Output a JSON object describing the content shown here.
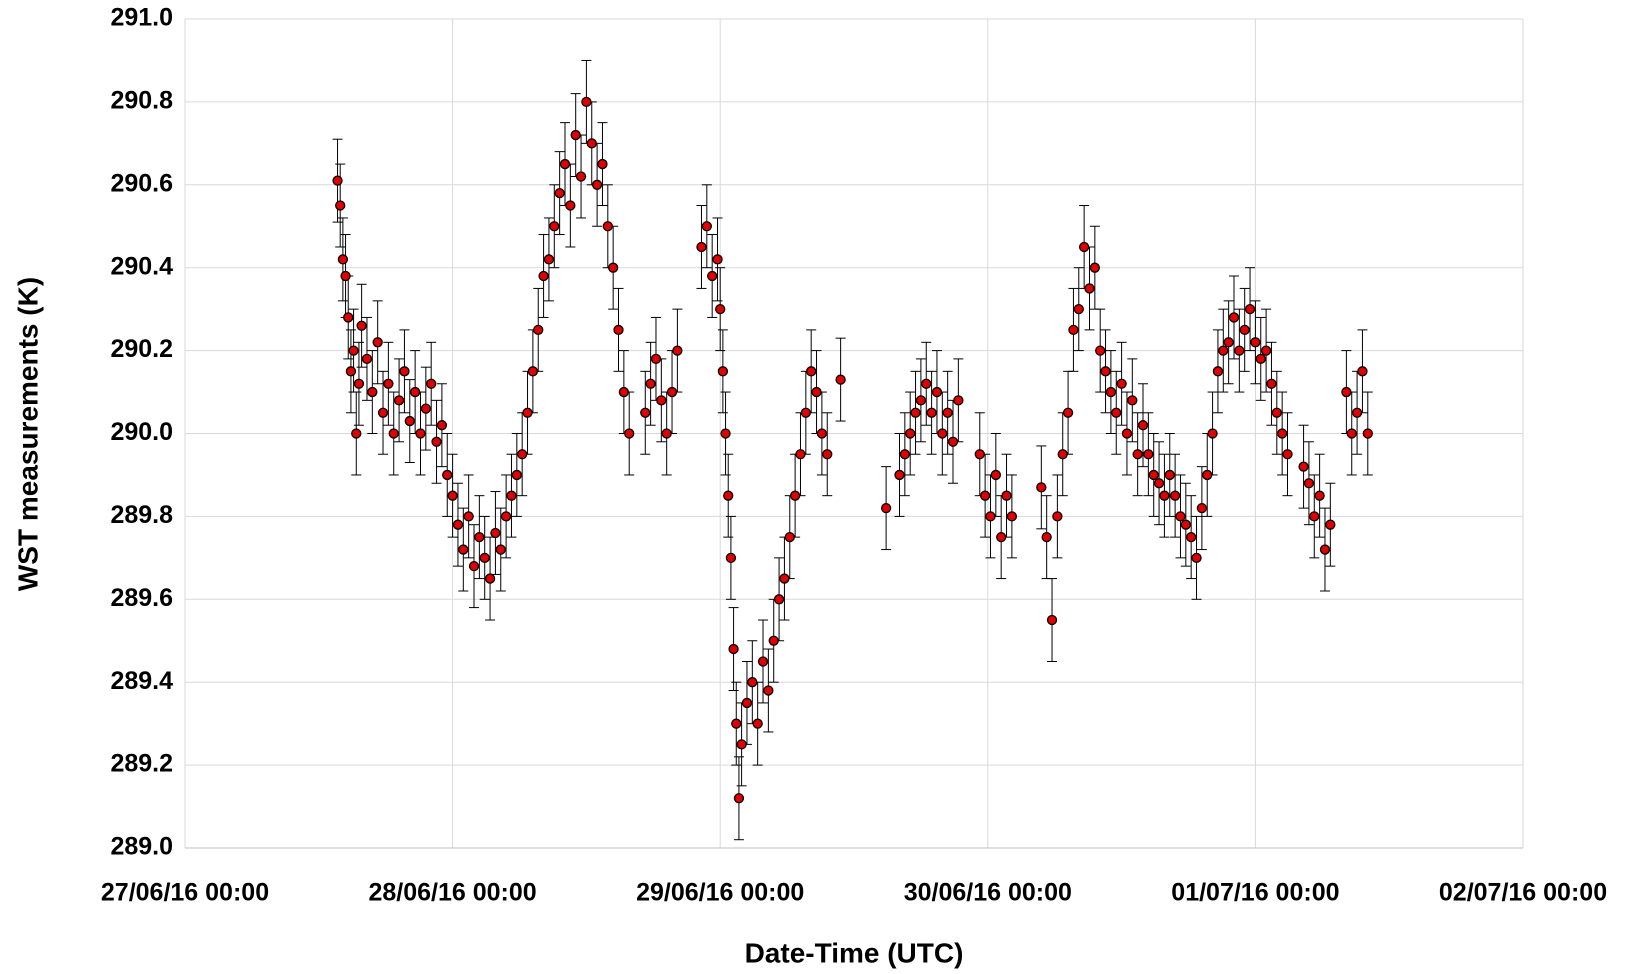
{
  "chart_data": {
    "type": "scatter",
    "x_label": "Date-Time (UTC)",
    "y_label": "WST measurements (K)",
    "color": "#e00000",
    "error": 0.1,
    "grid": true,
    "xlim": [
      0,
      5
    ],
    "xticks": [
      {
        "value": 0,
        "label": "27/06/16 00:00"
      },
      {
        "value": 1,
        "label": "28/06/16 00:00"
      },
      {
        "value": 2,
        "label": "29/06/16 00:00"
      },
      {
        "value": 3,
        "label": "30/06/16 00:00"
      },
      {
        "value": 4,
        "label": "01/07/16 00:00"
      },
      {
        "value": 5,
        "label": "02/07/16 00:00"
      }
    ],
    "ylim": [
      289.0,
      291.0
    ],
    "yticks": [
      {
        "value": 289.0,
        "label": "289.0"
      },
      289.2,
      289.4,
      289.6,
      289.8,
      {
        "value": 290.0,
        "label": "290.0"
      },
      290.2,
      290.4,
      290.6,
      290.8,
      {
        "value": 291.0,
        "label": "291.0"
      }
    ],
    "x": [
      0.57,
      0.58,
      0.59,
      0.6,
      0.61,
      0.62,
      0.63,
      0.64,
      0.65,
      0.66,
      0.68,
      0.7,
      0.72,
      0.74,
      0.76,
      0.78,
      0.8,
      0.82,
      0.84,
      0.86,
      0.88,
      0.9,
      0.92,
      0.94,
      0.96,
      0.98,
      1.0,
      1.02,
      1.04,
      1.06,
      1.08,
      1.1,
      1.12,
      1.14,
      1.16,
      1.18,
      1.2,
      1.22,
      1.24,
      1.26,
      1.28,
      1.3,
      1.32,
      1.34,
      1.36,
      1.38,
      1.4,
      1.42,
      1.44,
      1.46,
      1.48,
      1.5,
      1.52,
      1.54,
      1.56,
      1.58,
      1.6,
      1.62,
      1.64,
      1.66,
      1.72,
      1.74,
      1.76,
      1.78,
      1.8,
      1.82,
      1.84,
      1.93,
      1.95,
      1.97,
      1.99,
      2.0,
      2.01,
      2.02,
      2.03,
      2.04,
      2.05,
      2.06,
      2.07,
      2.08,
      2.1,
      2.12,
      2.14,
      2.16,
      2.18,
      2.2,
      2.22,
      2.24,
      2.26,
      2.28,
      2.3,
      2.32,
      2.34,
      2.36,
      2.38,
      2.4,
      2.45,
      2.62,
      2.67,
      2.69,
      2.71,
      2.73,
      2.75,
      2.77,
      2.79,
      2.81,
      2.83,
      2.85,
      2.87,
      2.89,
      2.97,
      2.99,
      3.01,
      3.03,
      3.05,
      3.07,
      3.09,
      3.2,
      3.22,
      3.24,
      3.26,
      3.28,
      3.3,
      3.32,
      3.34,
      3.36,
      3.38,
      3.4,
      3.42,
      3.44,
      3.46,
      3.48,
      3.5,
      3.52,
      3.54,
      3.56,
      3.58,
      3.6,
      3.62,
      3.64,
      3.66,
      3.68,
      3.7,
      3.72,
      3.74,
      3.76,
      3.78,
      3.8,
      3.82,
      3.84,
      3.86,
      3.88,
      3.9,
      3.92,
      3.94,
      3.96,
      3.98,
      4.0,
      4.02,
      4.04,
      4.06,
      4.08,
      4.1,
      4.12,
      4.18,
      4.2,
      4.22,
      4.24,
      4.26,
      4.28,
      4.34,
      4.36,
      4.38,
      4.4,
      4.42
    ],
    "values": [
      290.61,
      290.55,
      290.42,
      290.38,
      290.28,
      290.15,
      290.2,
      290.0,
      290.12,
      290.26,
      290.18,
      290.1,
      290.22,
      290.05,
      290.12,
      290.0,
      290.08,
      290.15,
      290.03,
      290.1,
      290.0,
      290.06,
      290.12,
      289.98,
      290.02,
      289.9,
      289.85,
      289.78,
      289.72,
      289.8,
      289.68,
      289.75,
      289.7,
      289.65,
      289.76,
      289.72,
      289.8,
      289.85,
      289.9,
      289.95,
      290.05,
      290.15,
      290.25,
      290.38,
      290.42,
      290.5,
      290.58,
      290.65,
      290.55,
      290.72,
      290.62,
      290.8,
      290.7,
      290.6,
      290.65,
      290.5,
      290.4,
      290.25,
      290.1,
      290.0,
      290.05,
      290.12,
      290.18,
      290.08,
      290.0,
      290.1,
      290.2,
      290.45,
      290.5,
      290.38,
      290.42,
      290.3,
      290.15,
      290.0,
      289.85,
      289.7,
      289.48,
      289.3,
      289.12,
      289.25,
      289.35,
      289.4,
      289.3,
      289.45,
      289.38,
      289.5,
      289.6,
      289.65,
      289.75,
      289.85,
      289.95,
      290.05,
      290.15,
      290.1,
      290.0,
      289.95,
      290.13,
      289.82,
      289.9,
      289.95,
      290.0,
      290.05,
      290.08,
      290.12,
      290.05,
      290.1,
      290.0,
      290.05,
      289.98,
      290.08,
      289.95,
      289.85,
      289.8,
      289.9,
      289.75,
      289.85,
      289.8,
      289.87,
      289.75,
      289.55,
      289.8,
      289.95,
      290.05,
      290.25,
      290.3,
      290.45,
      290.35,
      290.4,
      290.2,
      290.15,
      290.1,
      290.05,
      290.12,
      290.0,
      290.08,
      289.95,
      290.02,
      289.95,
      289.9,
      289.88,
      289.85,
      289.9,
      289.85,
      289.8,
      289.78,
      289.75,
      289.7,
      289.82,
      289.9,
      290.0,
      290.15,
      290.2,
      290.22,
      290.28,
      290.2,
      290.25,
      290.3,
      290.22,
      290.18,
      290.2,
      290.12,
      290.05,
      290.0,
      289.95,
      289.92,
      289.88,
      289.8,
      289.85,
      289.72,
      289.78,
      290.1,
      290.0,
      290.05,
      290.15,
      290.0
    ]
  }
}
